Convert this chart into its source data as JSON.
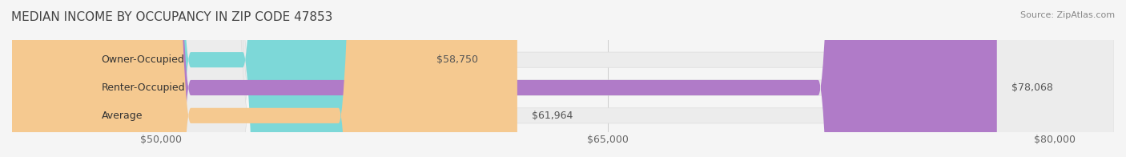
{
  "title": "MEDIAN INCOME BY OCCUPANCY IN ZIP CODE 47853",
  "source": "Source: ZipAtlas.com",
  "categories": [
    "Owner-Occupied",
    "Renter-Occupied",
    "Average"
  ],
  "values": [
    58750,
    78068,
    61964
  ],
  "bar_colors": [
    "#7dd8d8",
    "#b07bc8",
    "#f5c990"
  ],
  "bar_edge_colors": [
    "#a8e8e8",
    "#c89fdc",
    "#f8dab0"
  ],
  "value_labels": [
    "$58,750",
    "$78,068",
    "$61,964"
  ],
  "xmin": 45000,
  "xmax": 82000,
  "xticks": [
    50000,
    65000,
    80000
  ],
  "xtick_labels": [
    "$50,000",
    "$65,000",
    "$80,000"
  ],
  "bg_color": "#f5f5f5",
  "bar_bg_color": "#ececec",
  "title_fontsize": 11,
  "tick_fontsize": 9,
  "label_fontsize": 9,
  "value_fontsize": 9
}
